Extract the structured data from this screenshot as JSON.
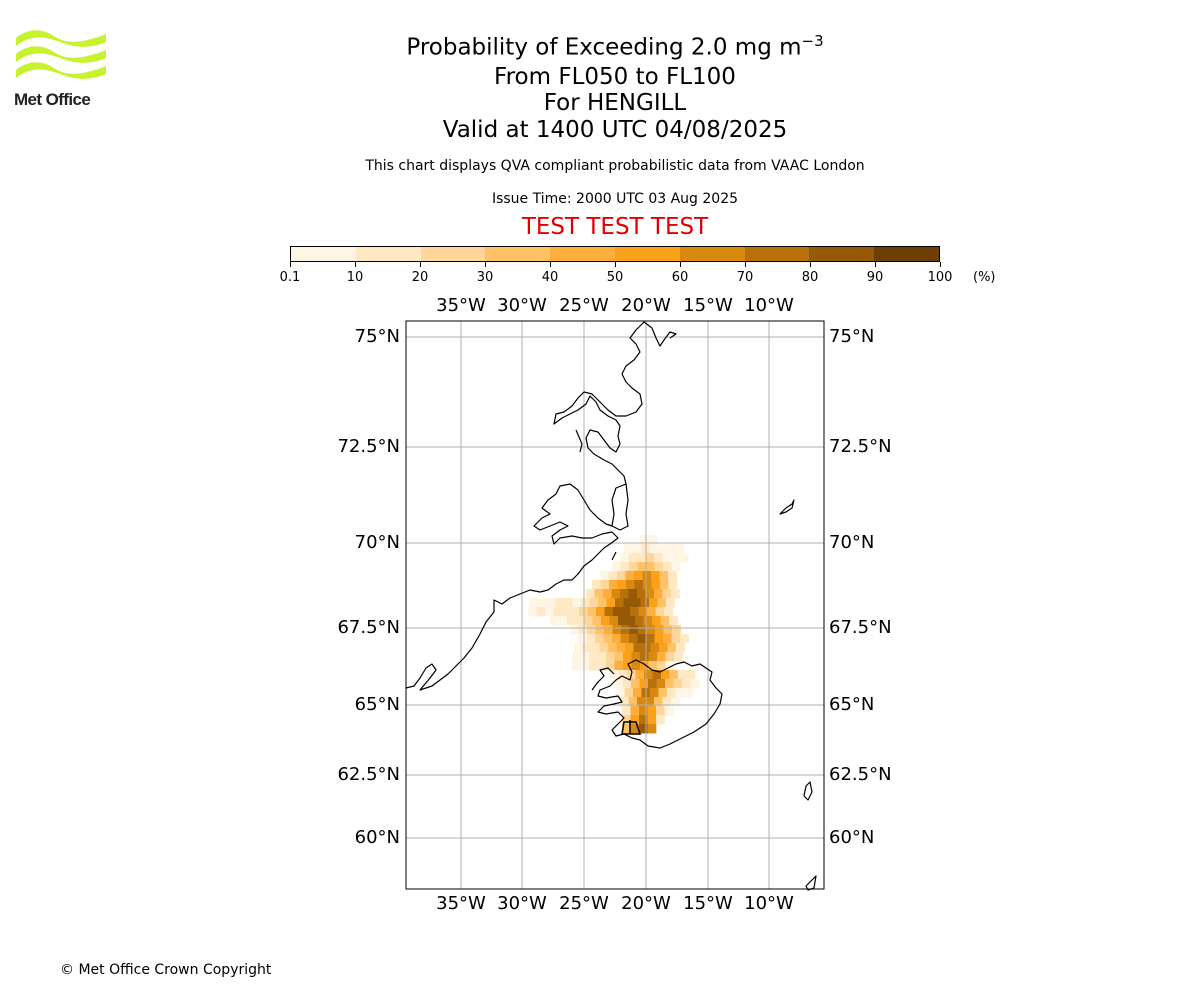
{
  "header": {
    "title_prefix": "Probability of Exceeding 2.0 mg m",
    "title_exponent": "−3",
    "levels": "From FL050 to FL100",
    "location": "For HENGILL",
    "valid": "Valid at 1400 UTC 04/08/2025",
    "description": "This chart displays QVA compliant probabilistic data from VAAC London",
    "issue_time": "Issue Time: 2000 UTC 03 Aug 2025",
    "test_banner": "TEST TEST TEST"
  },
  "logo": {
    "text": "Met Office",
    "color": "#c6f230"
  },
  "colorbar": {
    "tick_labels": [
      "0.1",
      "10",
      "20",
      "30",
      "40",
      "50",
      "60",
      "70",
      "80",
      "90",
      "100"
    ],
    "unit": "(%)",
    "colors": [
      "#fff5e5",
      "#ffe8c4",
      "#ffd699",
      "#ffc266",
      "#ffae3d",
      "#faa11c",
      "#d98910",
      "#b8700a",
      "#965a06",
      "#6e3f05"
    ]
  },
  "map": {
    "lon_labels": [
      "35°W",
      "30°W",
      "25°W",
      "20°W",
      "15°W",
      "10°W"
    ],
    "lat_labels": [
      "75°N",
      "72.5°N",
      "70°N",
      "67.5°N",
      "65°N",
      "62.5°N",
      "60°N"
    ],
    "plume_source": "HENGILL"
  },
  "footer": {
    "copyright": "© Met Office Crown Copyright"
  }
}
